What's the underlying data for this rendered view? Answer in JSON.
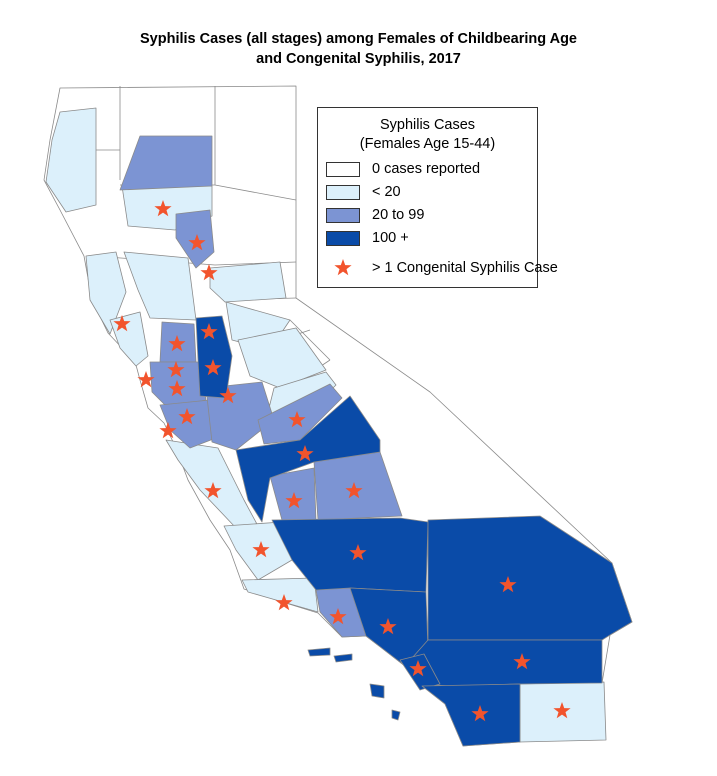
{
  "title_line1": "Syphilis Cases (all stages) among Females of Childbearing Age",
  "title_line2": "and Congenital Syphilis, 2017",
  "legend": {
    "title_line1": "Syphilis Cases",
    "title_line2": "(Females Age 15-44)",
    "items": [
      {
        "label": "0 cases reported",
        "color": "#ffffff"
      },
      {
        "label": "< 20",
        "color": "#dcf0fb"
      },
      {
        "label": "20 to 99",
        "color": "#7c94d3"
      },
      {
        "label": "100 +",
        "color": "#0a4ba8"
      }
    ],
    "star_label": "> 1 Congenital Syphilis Case",
    "star_color": "#f2542d"
  }
}
